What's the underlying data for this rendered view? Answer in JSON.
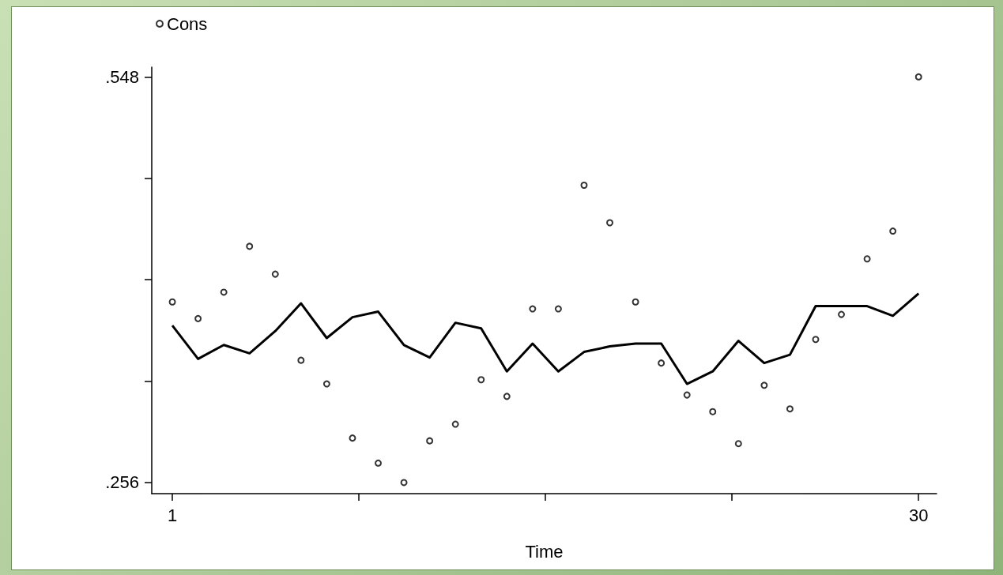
{
  "chart_data": {
    "type": "scatter",
    "xlabel": "Time",
    "x": [
      1,
      2,
      3,
      4,
      5,
      6,
      7,
      8,
      9,
      10,
      11,
      12,
      13,
      14,
      15,
      16,
      17,
      18,
      19,
      20,
      21,
      22,
      23,
      24,
      25,
      26,
      27,
      28,
      29,
      30
    ],
    "series": [
      {
        "name": "Cons",
        "marker": "circle",
        "color": "#000000",
        "values": [
          0.386,
          0.374,
          0.393,
          0.426,
          0.406,
          0.344,
          0.327,
          0.288,
          0.27,
          0.256,
          0.286,
          0.298,
          0.33,
          0.318,
          0.381,
          0.381,
          0.47,
          0.443,
          0.386,
          0.342,
          0.319,
          0.307,
          0.284,
          0.326,
          0.309,
          0.359,
          0.377,
          0.417,
          0.437,
          0.548
        ]
      },
      {
        "type": "line",
        "marker": "none",
        "color": "#000000",
        "values": [
          0.369,
          0.345,
          0.355,
          0.349,
          0.365,
          0.385,
          0.36,
          0.375,
          0.379,
          0.355,
          0.346,
          0.371,
          0.367,
          0.336,
          0.356,
          0.336,
          0.35,
          0.354,
          0.356,
          0.356,
          0.327,
          0.336,
          0.358,
          0.342,
          0.348,
          0.383,
          0.383,
          0.383,
          0.376,
          0.392
        ]
      }
    ],
    "xlim": [
      0.2,
      30.7
    ],
    "xticks": [
      1,
      {
        "value": 8.25,
        "label": null
      },
      {
        "value": 15.5,
        "label": null
      },
      {
        "value": 22.75,
        "label": null
      },
      30
    ],
    "ylim": [
      0.248,
      0.555
    ],
    "yticks": [
      {
        "value": 0.256,
        "label": ".256"
      },
      {
        "value": 0.329,
        "label": null
      },
      {
        "value": 0.402,
        "label": null
      },
      {
        "value": 0.475,
        "label": null
      },
      {
        "value": 0.548,
        "label": ".548"
      }
    ],
    "grid": false,
    "legend": "top left"
  }
}
